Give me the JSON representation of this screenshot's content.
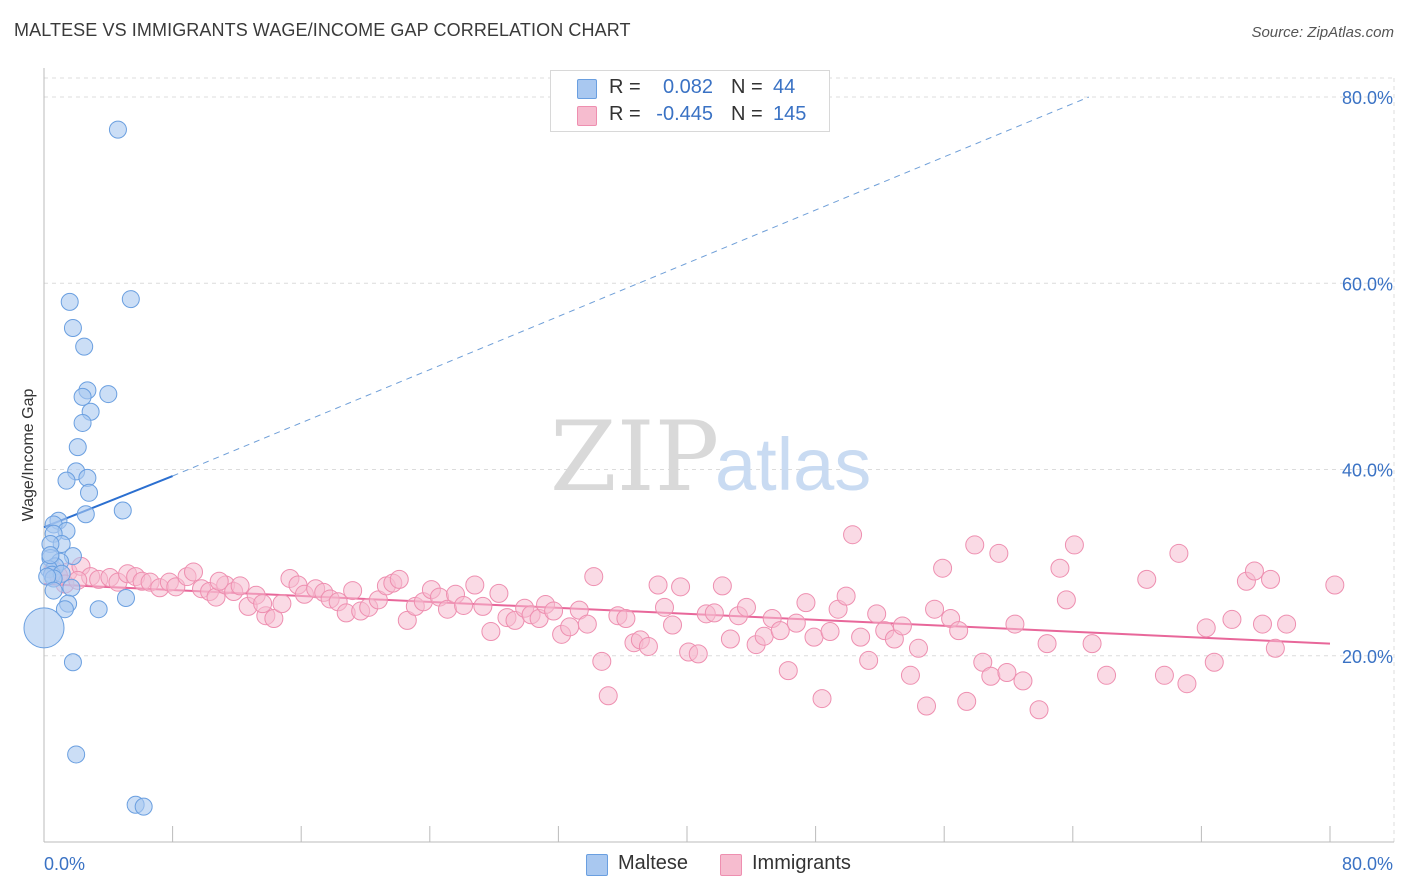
{
  "title": "MALTESE VS IMMIGRANTS WAGE/INCOME GAP CORRELATION CHART",
  "source": "Source: ZipAtlas.com",
  "watermark": {
    "zip": "ZIP",
    "atlas": "atlas"
  },
  "legend": {
    "rows": [
      {
        "r_label": "R =",
        "r_value": "0.082",
        "n_label": "N =",
        "n_value": "44"
      },
      {
        "r_label": "R =",
        "r_value": "-0.445",
        "n_label": "N =",
        "n_value": "145"
      }
    ]
  },
  "bottom_legend": [
    "Maltese",
    "Immigrants"
  ],
  "colors": {
    "blue_fill": "#a9c8f0",
    "blue_stroke": "#6a9fe0",
    "blue_line": "#2b6fd0",
    "pink_fill": "#f6bccf",
    "pink_stroke": "#ee8fb0",
    "pink_line": "#e8679a",
    "axis_label": "#3a72c4"
  },
  "chart_data": {
    "type": "scatter",
    "title": "MALTESE VS IMMIGRANTS WAGE/INCOME GAP CORRELATION CHART",
    "xlabel": "",
    "ylabel": "Wage/Income Gap",
    "xlim": [
      0,
      80
    ],
    "ylim": [
      0,
      82
    ],
    "x_tick_labels": [
      "0.0%",
      "80.0%"
    ],
    "y_ticks": [
      20,
      40,
      60,
      80
    ],
    "y_tick_labels": [
      "20.0%",
      "40.0%",
      "60.0%",
      "80.0%"
    ],
    "grid": true,
    "series": [
      {
        "name": "Maltese",
        "r": 0.082,
        "n": 44,
        "trend": {
          "x0": 0,
          "y0": 33.8,
          "x1": 8,
          "y1": 39.3,
          "dashed_to_x": 65,
          "dashed_to_y": 80.0
        },
        "points": [
          [
            4.6,
            76.5
          ],
          [
            5.4,
            58.3
          ],
          [
            1.6,
            58.0
          ],
          [
            1.8,
            55.2
          ],
          [
            2.5,
            53.2
          ],
          [
            2.7,
            48.5
          ],
          [
            2.4,
            47.8
          ],
          [
            4.0,
            48.1
          ],
          [
            2.9,
            46.2
          ],
          [
            2.4,
            45.0
          ],
          [
            2.1,
            42.4
          ],
          [
            2.0,
            39.8
          ],
          [
            2.7,
            39.1
          ],
          [
            1.4,
            38.8
          ],
          [
            2.8,
            37.5
          ],
          [
            4.9,
            35.6
          ],
          [
            2.6,
            35.2
          ],
          [
            0.9,
            34.5
          ],
          [
            0.6,
            34.1
          ],
          [
            1.4,
            33.4
          ],
          [
            0.6,
            33.1
          ],
          [
            1.1,
            32.0
          ],
          [
            0.4,
            32.0
          ],
          [
            1.8,
            30.7
          ],
          [
            0.4,
            30.5
          ],
          [
            1.0,
            30.1
          ],
          [
            0.7,
            29.6
          ],
          [
            0.3,
            29.3
          ],
          [
            0.5,
            28.7
          ],
          [
            1.1,
            28.8
          ],
          [
            0.6,
            28.3
          ],
          [
            0.2,
            28.5
          ],
          [
            1.7,
            27.3
          ],
          [
            0.6,
            27.0
          ],
          [
            5.1,
            26.2
          ],
          [
            1.5,
            25.6
          ],
          [
            3.4,
            25.0
          ],
          [
            1.3,
            25.0
          ],
          [
            0.0,
            23.0,
            "large"
          ],
          [
            1.8,
            19.3
          ],
          [
            2.0,
            9.4
          ],
          [
            5.7,
            4.0
          ],
          [
            6.2,
            3.8
          ],
          [
            0.4,
            30.8
          ]
        ]
      },
      {
        "name": "Immigrants",
        "r": -0.445,
        "n": 145,
        "trend": {
          "x0": 0,
          "y0": 27.7,
          "x1": 80,
          "y1": 21.3
        },
        "points": [
          [
            0.6,
            29.2
          ],
          [
            1.5,
            29.0
          ],
          [
            2.3,
            29.6
          ],
          [
            2.9,
            28.5
          ],
          [
            3.4,
            28.2
          ],
          [
            4.1,
            28.4
          ],
          [
            4.6,
            27.9
          ],
          [
            5.2,
            28.8
          ],
          [
            5.7,
            28.5
          ],
          [
            6.1,
            28.0
          ],
          [
            6.6,
            27.9
          ],
          [
            7.2,
            27.3
          ],
          [
            7.8,
            27.9
          ],
          [
            8.2,
            27.4
          ],
          [
            8.9,
            28.5
          ],
          [
            9.3,
            29.0
          ],
          [
            9.8,
            27.2
          ],
          [
            10.3,
            26.9
          ],
          [
            10.7,
            26.3
          ],
          [
            11.3,
            27.6
          ],
          [
            11.8,
            26.9
          ],
          [
            12.2,
            27.5
          ],
          [
            12.7,
            25.3
          ],
          [
            13.2,
            26.5
          ],
          [
            13.8,
            24.3
          ],
          [
            14.3,
            24.0
          ],
          [
            14.8,
            25.6
          ],
          [
            15.3,
            28.3
          ],
          [
            15.8,
            27.6
          ],
          [
            16.2,
            26.6
          ],
          [
            16.9,
            27.2
          ],
          [
            17.4,
            26.8
          ],
          [
            17.8,
            26.1
          ],
          [
            18.3,
            25.8
          ],
          [
            18.8,
            24.6
          ],
          [
            19.2,
            27.0
          ],
          [
            19.7,
            24.8
          ],
          [
            20.2,
            25.2
          ],
          [
            20.8,
            26.0
          ],
          [
            21.3,
            27.5
          ],
          [
            21.7,
            27.8
          ],
          [
            22.1,
            28.2
          ],
          [
            22.6,
            23.8
          ],
          [
            23.1,
            25.3
          ],
          [
            23.6,
            25.8
          ],
          [
            24.1,
            27.1
          ],
          [
            24.6,
            26.3
          ],
          [
            25.1,
            25.0
          ],
          [
            25.6,
            26.6
          ],
          [
            26.1,
            25.4
          ],
          [
            26.8,
            27.6
          ],
          [
            27.3,
            25.3
          ],
          [
            27.8,
            22.6
          ],
          [
            28.3,
            26.7
          ],
          [
            28.8,
            24.1
          ],
          [
            29.3,
            23.8
          ],
          [
            29.9,
            25.1
          ],
          [
            30.3,
            24.4
          ],
          [
            30.8,
            24.0
          ],
          [
            31.2,
            25.5
          ],
          [
            31.7,
            24.8
          ],
          [
            32.2,
            22.3
          ],
          [
            32.7,
            23.1
          ],
          [
            33.3,
            24.9
          ],
          [
            33.8,
            23.4
          ],
          [
            34.2,
            28.5
          ],
          [
            34.7,
            19.4
          ],
          [
            35.1,
            15.7
          ],
          [
            35.7,
            24.3
          ],
          [
            36.2,
            24.0
          ],
          [
            36.7,
            21.4
          ],
          [
            37.1,
            21.7
          ],
          [
            37.6,
            21.0
          ],
          [
            38.2,
            27.6
          ],
          [
            38.6,
            25.2
          ],
          [
            39.1,
            23.3
          ],
          [
            39.6,
            27.4
          ],
          [
            40.1,
            20.4
          ],
          [
            40.7,
            20.2
          ],
          [
            41.2,
            24.5
          ],
          [
            41.7,
            24.6
          ],
          [
            42.2,
            27.5
          ],
          [
            42.7,
            21.8
          ],
          [
            43.2,
            24.3
          ],
          [
            43.7,
            25.2
          ],
          [
            44.3,
            21.2
          ],
          [
            44.8,
            22.1
          ],
          [
            45.3,
            24.0
          ],
          [
            45.8,
            22.7
          ],
          [
            46.3,
            18.4
          ],
          [
            46.8,
            23.5
          ],
          [
            47.4,
            25.7
          ],
          [
            47.9,
            22.0
          ],
          [
            48.4,
            15.4
          ],
          [
            48.9,
            22.6
          ],
          [
            49.4,
            25.0
          ],
          [
            49.9,
            26.4
          ],
          [
            50.3,
            33.0
          ],
          [
            50.8,
            22.0
          ],
          [
            51.3,
            19.5
          ],
          [
            51.8,
            24.5
          ],
          [
            52.3,
            22.7
          ],
          [
            52.9,
            21.8
          ],
          [
            53.4,
            23.2
          ],
          [
            53.9,
            17.9
          ],
          [
            54.4,
            20.8
          ],
          [
            54.9,
            14.6
          ],
          [
            55.4,
            25.0
          ],
          [
            55.9,
            29.4
          ],
          [
            56.4,
            24.0
          ],
          [
            56.9,
            22.7
          ],
          [
            57.4,
            15.1
          ],
          [
            57.9,
            31.9
          ],
          [
            58.4,
            19.3
          ],
          [
            58.9,
            17.8
          ],
          [
            59.4,
            31.0
          ],
          [
            59.9,
            18.2
          ],
          [
            60.4,
            23.4
          ],
          [
            60.9,
            17.3
          ],
          [
            61.9,
            14.2
          ],
          [
            62.4,
            21.3
          ],
          [
            63.2,
            29.4
          ],
          [
            63.6,
            26.0
          ],
          [
            64.1,
            31.9
          ],
          [
            65.2,
            21.3
          ],
          [
            66.1,
            17.9
          ],
          [
            68.6,
            28.2
          ],
          [
            69.7,
            17.9
          ],
          [
            70.6,
            31.0
          ],
          [
            71.1,
            17.0
          ],
          [
            72.3,
            23.0
          ],
          [
            72.8,
            19.3
          ],
          [
            73.9,
            23.9
          ],
          [
            74.8,
            28.0
          ],
          [
            75.3,
            29.1
          ],
          [
            75.8,
            23.4
          ],
          [
            76.3,
            28.2
          ],
          [
            77.3,
            23.4
          ],
          [
            80.3,
            27.6
          ],
          [
            76.6,
            20.8
          ],
          [
            0.9,
            28.6
          ],
          [
            1.3,
            27.7
          ],
          [
            2.1,
            28.1
          ],
          [
            10.9,
            28.0
          ],
          [
            13.6,
            25.6
          ]
        ]
      }
    ]
  }
}
